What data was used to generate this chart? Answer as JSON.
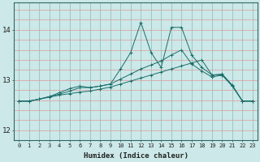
{
  "xlabel": "Humidex (Indice chaleur)",
  "bg_color": "#cce8e8",
  "line_color": "#1a6e6a",
  "xlim": [
    -0.5,
    23.5
  ],
  "ylim": [
    11.8,
    14.55
  ],
  "yticks": [
    12,
    13,
    14
  ],
  "xticks": [
    0,
    1,
    2,
    3,
    4,
    5,
    6,
    7,
    8,
    9,
    10,
    11,
    12,
    13,
    14,
    15,
    16,
    17,
    18,
    19,
    20,
    21,
    22,
    23
  ],
  "hgrid_y": [
    11.8,
    12.0,
    12.2,
    12.4,
    12.6,
    12.8,
    13.0,
    13.2,
    13.4,
    13.6,
    13.8,
    14.0,
    14.2,
    14.4
  ],
  "line1_x": [
    0,
    1,
    2,
    3,
    4,
    5,
    6,
    7,
    8,
    9,
    10,
    11,
    12,
    13,
    14,
    15,
    16,
    17,
    18,
    19,
    20,
    21,
    22,
    23
  ],
  "line1_y": [
    12.58,
    12.58,
    12.62,
    12.66,
    12.7,
    12.73,
    12.76,
    12.78,
    12.82,
    12.86,
    12.92,
    12.98,
    13.04,
    13.1,
    13.16,
    13.22,
    13.28,
    13.34,
    13.4,
    13.1,
    13.1,
    12.88,
    12.58,
    12.58
  ],
  "line2_x": [
    0,
    1,
    2,
    3,
    4,
    5,
    6,
    7,
    8,
    9,
    10,
    11,
    12,
    13,
    14,
    15,
    16,
    17,
    18,
    19,
    20,
    21,
    22,
    23
  ],
  "line2_y": [
    12.58,
    12.58,
    12.62,
    12.67,
    12.72,
    12.78,
    12.85,
    12.85,
    12.88,
    12.92,
    13.02,
    13.12,
    13.22,
    13.3,
    13.38,
    13.5,
    13.6,
    13.32,
    13.18,
    13.06,
    13.1,
    12.88,
    12.58,
    12.58
  ],
  "line3_x": [
    0,
    1,
    2,
    3,
    4,
    5,
    6,
    7,
    8,
    9,
    10,
    11,
    12,
    13,
    14,
    15,
    16,
    17,
    18,
    19,
    20,
    21,
    22,
    23
  ],
  "line3_y": [
    12.58,
    12.58,
    12.62,
    12.67,
    12.75,
    12.83,
    12.88,
    12.85,
    12.88,
    12.92,
    13.22,
    13.55,
    14.15,
    13.55,
    13.25,
    14.05,
    14.05,
    13.5,
    13.25,
    13.1,
    13.12,
    12.9,
    12.58,
    12.58
  ],
  "markersize": 2.5
}
